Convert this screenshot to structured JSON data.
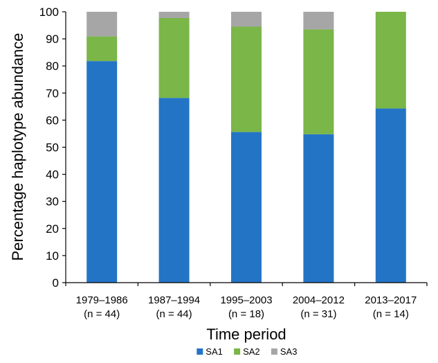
{
  "chart_data": {
    "type": "bar",
    "stacked": true,
    "categories": [
      "1979–1986",
      "1987–1994",
      "1995–2003",
      "2004–2012",
      "2013–2017"
    ],
    "category_sublabels": [
      "(n = 44)",
      "(n = 44)",
      "(n = 18)",
      "(n = 31)",
      "(n = 14)"
    ],
    "series": [
      {
        "name": "SA1",
        "color": "#2474c6",
        "values": [
          81.8,
          68.2,
          55.6,
          54.8,
          64.3
        ]
      },
      {
        "name": "SA2",
        "color": "#7ab648",
        "values": [
          9.1,
          29.5,
          38.9,
          38.7,
          35.7
        ]
      },
      {
        "name": "SA3",
        "color": "#a6a6a6",
        "values": [
          9.1,
          2.3,
          5.5,
          6.5,
          0
        ]
      }
    ],
    "xlabel": "Time period",
    "ylabel": "Percentage haplotype abundance",
    "ylim": [
      0,
      100
    ],
    "yticks": [
      0,
      10,
      20,
      30,
      40,
      50,
      60,
      70,
      80,
      90,
      100
    ],
    "grid": false,
    "legend_position": "bottom"
  }
}
